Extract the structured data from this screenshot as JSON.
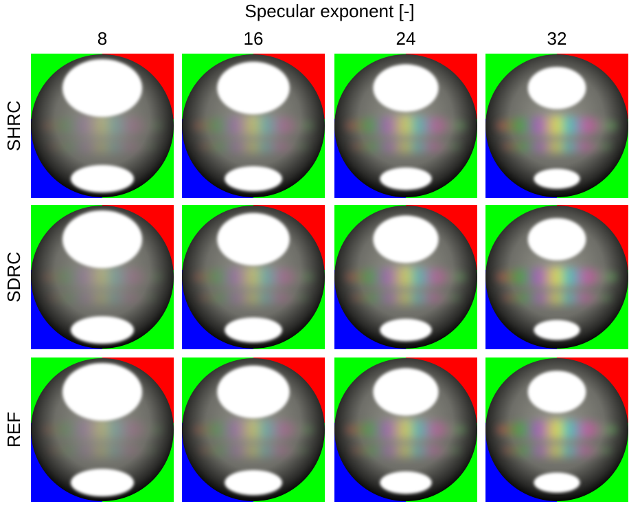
{
  "header": {
    "title": "Specular exponent [-]"
  },
  "columns": [
    "8",
    "16",
    "24",
    "32"
  ],
  "rows": [
    "SHRC",
    "SDRC",
    "REF"
  ]
}
